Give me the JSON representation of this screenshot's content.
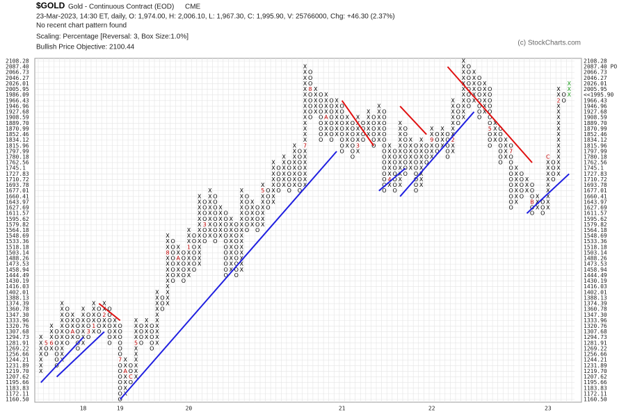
{
  "chart_data": {
    "type": "pnf",
    "symbol": "$GOLD",
    "name": "Gold - Continuous Contract (EOD)",
    "exchange": "CME",
    "quote": "23-Mar-2023, 14:30 ET, daily, O: 1,974.00, H: 2,006.10, L: 1,967.30, C: 1,995.90, V: 25766000, Chg: +46.30 (2.37%)",
    "pattern": "No recent chart pattern found",
    "scaling": "Scaling: Percentage [Reversal: 3, Box Size:1.0%]",
    "objective": "Bullish Price Objective: 2100.44",
    "copyright": "(c) StockCharts.com",
    "log_scale": true,
    "grid": true,
    "ylim": [
      1160.5,
      2108.28
    ],
    "yticks": [
      {
        "value": 1160.5,
        "label": "1160.50"
      },
      1172.11,
      1183.83,
      1195.66,
      1207.62,
      {
        "value": 1219.7,
        "label": "1219.70"
      },
      1231.89,
      1244.21,
      1256.66,
      1269.22,
      1281.91,
      1294.73,
      1307.68,
      1320.76,
      1333.96,
      {
        "value": 1347.3,
        "label": "1347.30"
      },
      1360.78,
      1374.39,
      1388.13,
      1402.01,
      1416.03,
      1430.19,
      1444.49,
      1458.94,
      1473.53,
      1488.26,
      1503.14,
      1518.18,
      1533.36,
      1548.69,
      1564.18,
      1579.82,
      1595.62,
      1611.57,
      1627.69,
      1643.97,
      1660.41,
      1677.01,
      1693.78,
      1710.72,
      1727.83,
      1745.1,
      1762.56,
      1780.18,
      1797.99,
      1815.96,
      1834.12,
      1852.46,
      1870.99,
      {
        "value": 1889.7,
        "label": "1889.70"
      },
      1908.59,
      1927.68,
      1946.96,
      1966.43,
      1986.09,
      2005.95,
      2026.01,
      2046.27,
      2066.73,
      {
        "value": 2087.4,
        "label": "2087.40"
      },
      2108.28
    ],
    "right_markers": [
      {
        "value": 2087.4,
        "label": "2087.40 PO",
        "color": "#1a9a1a"
      },
      {
        "value": 1986.09,
        "label": "<<1995.90",
        "color": "#cc0000"
      }
    ],
    "x_color": "#000000",
    "o_color": "#000000",
    "last_color": "#1a9a1a",
    "marker_color": "#c00000",
    "columns": [
      {
        "type": "X",
        "low": 1219.7,
        "high": 1294.73
      },
      {
        "type": "O",
        "low": 1256.66,
        "high": 1281.91
      },
      {
        "type": "X",
        "low": 1269.22,
        "high": 1320.76
      },
      {
        "type": "O",
        "low": 1231.89,
        "high": 1307.68
      },
      {
        "type": "X",
        "low": 1244.21,
        "high": 1374.39
      },
      {
        "type": "O",
        "low": 1281.91,
        "high": 1360.78
      },
      {
        "type": "X",
        "low": 1294.73,
        "high": 1347.3
      },
      {
        "type": "O",
        "low": 1269.22,
        "high": 1333.96
      },
      {
        "type": "X",
        "low": 1281.91,
        "high": 1360.78
      },
      {
        "type": "O",
        "low": 1294.73,
        "high": 1347.3
      },
      {
        "type": "X",
        "low": 1307.68,
        "high": 1374.39
      },
      {
        "type": "O",
        "low": 1307.68,
        "high": 1360.78
      },
      {
        "type": "X",
        "low": 1320.76,
        "high": 1374.39
      },
      {
        "type": "O",
        "low": 1281.91,
        "high": 1360.78
      },
      {
        "type": "X",
        "low": 1294.73,
        "high": 1333.96
      },
      {
        "type": "O",
        "low": 1160.5,
        "high": 1320.76
      },
      {
        "type": "X",
        "low": 1172.11,
        "high": 1244.21
      },
      {
        "type": "O",
        "low": 1195.66,
        "high": 1231.89
      },
      {
        "type": "X",
        "low": 1207.62,
        "high": 1333.96
      },
      {
        "type": "O",
        "low": 1281.91,
        "high": 1320.76
      },
      {
        "type": "X",
        "low": 1294.73,
        "high": 1333.96
      },
      {
        "type": "O",
        "low": 1269.22,
        "high": 1320.76
      },
      {
        "type": "X",
        "low": 1281.91,
        "high": 1402.01
      },
      {
        "type": "O",
        "low": 1360.78,
        "high": 1388.13
      },
      {
        "type": "X",
        "low": 1374.39,
        "high": 1548.69
      },
      {
        "type": "O",
        "low": 1430.19,
        "high": 1533.36
      },
      {
        "type": "X",
        "low": 1444.49,
        "high": 1518.18
      },
      {
        "type": "O",
        "low": 1430.19,
        "high": 1503.14
      },
      {
        "type": "X",
        "low": 1444.49,
        "high": 1564.18
      },
      {
        "type": "O",
        "low": 1458.94,
        "high": 1548.69
      },
      {
        "type": "X",
        "low": 1473.53,
        "high": 1660.41
      },
      {
        "type": "O",
        "low": 1533.36,
        "high": 1643.97
      },
      {
        "type": "X",
        "low": 1548.69,
        "high": 1677.01
      },
      {
        "type": "O",
        "low": 1533.36,
        "high": 1660.41
      },
      {
        "type": "X",
        "low": 1548.69,
        "high": 1627.69
      },
      {
        "type": "O",
        "low": 1444.49,
        "high": 1611.57
      },
      {
        "type": "X",
        "low": 1458.94,
        "high": 1595.62
      },
      {
        "type": "O",
        "low": 1444.49,
        "high": 1579.82
      },
      {
        "type": "X",
        "low": 1458.94,
        "high": 1677.01
      },
      {
        "type": "O",
        "low": 1564.18,
        "high": 1660.41
      },
      {
        "type": "X",
        "low": 1579.82,
        "high": 1643.97
      },
      {
        "type": "O",
        "low": 1564.18,
        "high": 1627.69
      },
      {
        "type": "X",
        "low": 1579.82,
        "high": 1693.78
      },
      {
        "type": "O",
        "low": 1627.69,
        "high": 1677.01
      },
      {
        "type": "X",
        "low": 1643.97,
        "high": 1762.56
      },
      {
        "type": "O",
        "low": 1677.01,
        "high": 1745.1
      },
      {
        "type": "X",
        "low": 1693.78,
        "high": 1780.18
      },
      {
        "type": "O",
        "low": 1677.01,
        "high": 1762.56
      },
      {
        "type": "X",
        "low": 1693.78,
        "high": 1815.96
      },
      {
        "type": "O",
        "low": 1677.01,
        "high": 1797.99
      },
      {
        "type": "X",
        "low": 1693.78,
        "high": 2087.4
      },
      {
        "type": "O",
        "low": 1908.59,
        "high": 2066.73
      },
      {
        "type": "X",
        "low": 1927.68,
        "high": 2005.95
      },
      {
        "type": "O",
        "low": 1834.12,
        "high": 1986.09
      },
      {
        "type": "X",
        "low": 1852.46,
        "high": 1986.09
      },
      {
        "type": "O",
        "low": 1834.12,
        "high": 1966.43
      },
      {
        "type": "X",
        "low": 1852.46,
        "high": 1966.43
      },
      {
        "type": "O",
        "low": 1797.99,
        "high": 1946.96
      },
      {
        "type": "X",
        "low": 1815.96,
        "high": 1908.59
      },
      {
        "type": "O",
        "low": 1780.18,
        "high": 1889.7
      },
      {
        "type": "X",
        "low": 1797.99,
        "high": 1908.59
      },
      {
        "type": "O",
        "low": 1834.12,
        "high": 1889.7
      },
      {
        "type": "X",
        "low": 1852.46,
        "high": 1927.68
      },
      {
        "type": "O",
        "low": 1815.96,
        "high": 1908.59
      },
      {
        "type": "X",
        "low": 1834.12,
        "high": 1946.96
      },
      {
        "type": "O",
        "low": 1677.01,
        "high": 1927.68
      },
      {
        "type": "X",
        "low": 1693.78,
        "high": 1815.96
      },
      {
        "type": "O",
        "low": 1677.01,
        "high": 1797.99
      },
      {
        "type": "X",
        "low": 1693.78,
        "high": 1889.7
      },
      {
        "type": "O",
        "low": 1727.83,
        "high": 1870.99
      },
      {
        "type": "X",
        "low": 1745.1,
        "high": 1834.12
      },
      {
        "type": "O",
        "low": 1677.01,
        "high": 1815.96
      },
      {
        "type": "X",
        "low": 1693.78,
        "high": 1834.12
      },
      {
        "type": "O",
        "low": 1762.56,
        "high": 1815.96
      },
      {
        "type": "X",
        "low": 1780.18,
        "high": 1870.99
      },
      {
        "type": "O",
        "low": 1797.99,
        "high": 1852.46
      },
      {
        "type": "X",
        "low": 1815.96,
        "high": 1870.99
      },
      {
        "type": "O",
        "low": 1780.18,
        "high": 1852.46
      },
      {
        "type": "X",
        "low": 1797.99,
        "high": 1966.43
      },
      {
        "type": "O",
        "low": 1889.7,
        "high": 1946.96
      },
      {
        "type": "X",
        "low": 1908.59,
        "high": 2108.28
      },
      {
        "type": "O",
        "low": 1946.96,
        "high": 2087.4
      },
      {
        "type": "X",
        "low": 1966.43,
        "high": 2066.73
      },
      {
        "type": "O",
        "low": 1908.59,
        "high": 2046.27
      },
      {
        "type": "X",
        "low": 1927.68,
        "high": 2026.01
      },
      {
        "type": "O",
        "low": 1815.96,
        "high": 2005.95
      },
      {
        "type": "X",
        "low": 1834.12,
        "high": 1889.7
      },
      {
        "type": "O",
        "low": 1762.56,
        "high": 1870.99
      },
      {
        "type": "X",
        "low": 1780.18,
        "high": 1834.12
      },
      {
        "type": "O",
        "low": 1627.69,
        "high": 1815.96
      },
      {
        "type": "X",
        "low": 1643.97,
        "high": 1745.1
      },
      {
        "type": "O",
        "low": 1660.41,
        "high": 1727.83
      },
      {
        "type": "X",
        "low": 1677.01,
        "high": 1710.72
      },
      {
        "type": "O",
        "low": 1611.57,
        "high": 1693.78
      },
      {
        "type": "X",
        "low": 1627.69,
        "high": 1660.41
      },
      {
        "type": "O",
        "low": 1611.57,
        "high": 1643.97
      },
      {
        "type": "X",
        "low": 1627.69,
        "high": 1780.18
      },
      {
        "type": "O",
        "low": 1710.72,
        "high": 1762.56
      },
      {
        "type": "X",
        "low": 1727.83,
        "high": 2005.95
      },
      {
        "type": "O",
        "low": 1966.43,
        "high": 1986.09
      },
      {
        "type": "X",
        "low": 1986.09,
        "high": 2026.01
      }
    ],
    "month_markers": [
      {
        "col": 1,
        "price": 1281.91,
        "label": "5"
      },
      {
        "col": 2,
        "price": 1281.91,
        "label": "6"
      },
      {
        "col": 6,
        "price": 1307.68,
        "label": "A"
      },
      {
        "col": 10,
        "price": 1320.76,
        "label": "1"
      },
      {
        "col": 12,
        "price": 1347.3,
        "label": "2"
      },
      {
        "col": 9,
        "price": 1307.68,
        "label": "3"
      },
      {
        "col": 15,
        "price": 1244.21,
        "label": "7"
      },
      {
        "col": 16,
        "price": 1219.7,
        "label": "A"
      },
      {
        "col": 17,
        "price": 1207.62,
        "label": "C"
      },
      {
        "col": 18,
        "price": 1281.91,
        "label": "5"
      },
      {
        "col": 24,
        "price": 1503.14,
        "label": "8"
      },
      {
        "col": 26,
        "price": 1488.26,
        "label": "A"
      },
      {
        "col": 28,
        "price": 1518.18,
        "label": "1"
      },
      {
        "col": 31,
        "price": 1579.82,
        "label": "3"
      },
      {
        "col": 42,
        "price": 1677.01,
        "label": "5"
      },
      {
        "col": 50,
        "price": 1815.96,
        "label": "7"
      },
      {
        "col": 51,
        "price": 2005.95,
        "label": "8"
      },
      {
        "col": 54,
        "price": 1908.59,
        "label": "A"
      },
      {
        "col": 60,
        "price": 1815.96,
        "label": "3"
      },
      {
        "col": 66,
        "price": 1710.72,
        "label": "4"
      },
      {
        "col": 74,
        "price": 1834.12,
        "label": "9"
      },
      {
        "col": 78,
        "price": 1834.12,
        "label": "2"
      },
      {
        "col": 85,
        "price": 1870.99,
        "label": "5"
      },
      {
        "col": 89,
        "price": 1797.99,
        "label": "7"
      },
      {
        "col": 93,
        "price": 1643.97,
        "label": "B"
      },
      {
        "col": 96,
        "price": 1780.18,
        "label": "C"
      },
      {
        "col": 98,
        "price": 1966.43,
        "label": "2"
      }
    ],
    "trendlines": [
      {
        "color": "#1f1fe0",
        "from": [
          0,
          1195.66
        ],
        "to": [
          8,
          1294.73
        ]
      },
      {
        "color": "#1f1fe0",
        "from": [
          3,
          1207.62
        ],
        "to": [
          12,
          1307.68
        ]
      },
      {
        "color": "#e01010",
        "from": [
          11,
          1374.39
        ],
        "to": [
          15,
          1333.96
        ]
      },
      {
        "color": "#1f1fe0",
        "from": [
          15,
          1160.5
        ],
        "to": [
          56,
          1797.99
        ]
      },
      {
        "color": "#e01010",
        "from": [
          57,
          1966.43
        ],
        "to": [
          63,
          1815.96
        ]
      },
      {
        "color": "#e01010",
        "from": [
          68,
          1946.96
        ],
        "to": [
          73,
          1852.46
        ]
      },
      {
        "color": "#1f1fe0",
        "from": [
          64,
          1677.01
        ],
        "to": [
          69,
          1745.1
        ]
      },
      {
        "color": "#1f1fe0",
        "from": [
          68,
          1660.41
        ],
        "to": [
          82,
          1927.68
        ]
      },
      {
        "color": "#e01010",
        "from": [
          77,
          2087.4
        ],
        "to": [
          93,
          1762.56
        ]
      },
      {
        "color": "#1f1fe0",
        "from": [
          92,
          1611.57
        ],
        "to": [
          100,
          1727.83
        ]
      }
    ],
    "years": [
      {
        "col": 8,
        "label": "18"
      },
      {
        "col": 15,
        "label": "19"
      },
      {
        "col": 28,
        "label": "20"
      },
      {
        "col": 57,
        "label": "21"
      },
      {
        "col": 74,
        "label": "22"
      },
      {
        "col": 96,
        "label": "23"
      }
    ]
  }
}
